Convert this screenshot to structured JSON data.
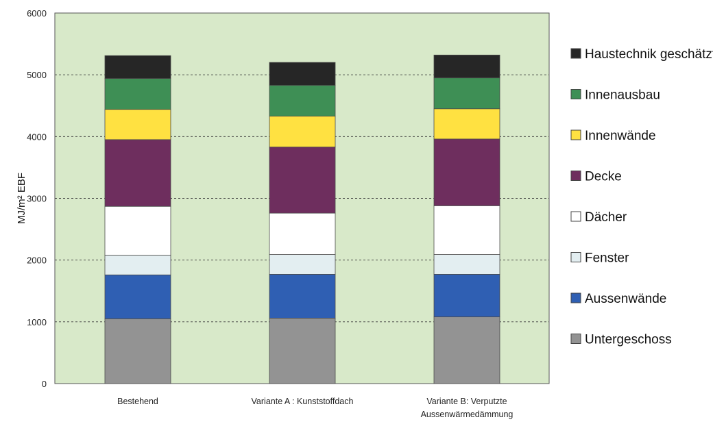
{
  "chart_data": {
    "type": "bar",
    "stacked": true,
    "title": "",
    "xlabel": "",
    "ylabel": "MJ/m² EBF",
    "ylim": [
      0,
      6000
    ],
    "yticks": [
      "0",
      "1000",
      "2000",
      "3000",
      "4000",
      "5000",
      "6000"
    ],
    "grid": "horizontal dashed",
    "legend_position": "right",
    "plot_background": "#d8e9c9",
    "categories": [
      [
        "Bestehend"
      ],
      [
        "Variante A : Kunststoffdach"
      ],
      [
        "Variante B: Verputzte",
        "Aussenwärmedämmung"
      ]
    ],
    "series": [
      {
        "name": "Untergeschoss",
        "color": "#939393",
        "values": [
          1050,
          1060,
          1080
        ]
      },
      {
        "name": "Aussenwände",
        "color": "#2f5fb3",
        "values": [
          710,
          710,
          690
        ]
      },
      {
        "name": "Fenster",
        "color": "#e3eef1",
        "values": [
          320,
          320,
          320
        ]
      },
      {
        "name": "Dächer",
        "color": "#ffffff",
        "values": [
          790,
          670,
          790
        ]
      },
      {
        "name": "Decke",
        "color": "#6e2e5e",
        "values": [
          1080,
          1070,
          1080
        ]
      },
      {
        "name": "Innenwände",
        "color": "#ffe141",
        "values": [
          490,
          500,
          490
        ]
      },
      {
        "name": "Innenausbau",
        "color": "#3e8f55",
        "values": [
          500,
          500,
          500
        ]
      },
      {
        "name": "Haustechnik geschätzt",
        "color": "#262626",
        "values": [
          370,
          370,
          370
        ]
      }
    ]
  }
}
